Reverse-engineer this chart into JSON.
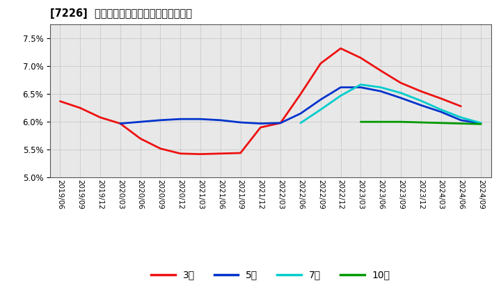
{
  "title": "[7226]  当期純利益マージンの平均値の推移",
  "background_color": "#ffffff",
  "plot_bg_color": "#e8e8e8",
  "ylim": [
    5.0,
    7.75
  ],
  "yticks": [
    5.0,
    5.5,
    6.0,
    6.5,
    7.0,
    7.5
  ],
  "series": {
    "3年": {
      "color": "#ee1111",
      "data": [
        [
          "2019/06",
          6.37
        ],
        [
          "2019/09",
          6.25
        ],
        [
          "2019/12",
          6.08
        ],
        [
          "2020/03",
          5.97
        ],
        [
          "2020/06",
          5.7
        ],
        [
          "2020/09",
          5.52
        ],
        [
          "2020/12",
          5.43
        ],
        [
          "2021/03",
          5.42
        ],
        [
          "2021/06",
          5.43
        ],
        [
          "2021/09",
          5.44
        ],
        [
          "2021/12",
          5.9
        ],
        [
          "2022/03",
          5.98
        ],
        [
          "2022/06",
          6.5
        ],
        [
          "2022/09",
          7.05
        ],
        [
          "2022/12",
          7.32
        ],
        [
          "2023/03",
          7.15
        ],
        [
          "2023/06",
          6.92
        ],
        [
          "2023/09",
          6.7
        ],
        [
          "2023/12",
          6.55
        ],
        [
          "2024/03",
          6.42
        ],
        [
          "2024/06",
          6.28
        ]
      ]
    },
    "5年": {
      "color": "#0033cc",
      "data": [
        [
          "2020/03",
          5.97
        ],
        [
          "2020/06",
          6.0
        ],
        [
          "2020/09",
          6.03
        ],
        [
          "2020/12",
          6.05
        ],
        [
          "2021/03",
          6.05
        ],
        [
          "2021/06",
          6.03
        ],
        [
          "2021/09",
          5.99
        ],
        [
          "2021/12",
          5.97
        ],
        [
          "2022/03",
          5.98
        ],
        [
          "2022/06",
          6.15
        ],
        [
          "2022/09",
          6.4
        ],
        [
          "2022/12",
          6.62
        ],
        [
          "2023/03",
          6.62
        ],
        [
          "2023/06",
          6.55
        ],
        [
          "2023/09",
          6.43
        ],
        [
          "2023/12",
          6.3
        ],
        [
          "2024/03",
          6.18
        ],
        [
          "2024/06",
          6.03
        ],
        [
          "2024/09",
          5.97
        ]
      ]
    },
    "7年": {
      "color": "#00cccc",
      "data": [
        [
          "2022/06",
          5.98
        ],
        [
          "2022/09",
          6.22
        ],
        [
          "2022/12",
          6.47
        ],
        [
          "2023/03",
          6.67
        ],
        [
          "2023/06",
          6.62
        ],
        [
          "2023/09",
          6.52
        ],
        [
          "2023/12",
          6.38
        ],
        [
          "2024/03",
          6.22
        ],
        [
          "2024/06",
          6.08
        ],
        [
          "2024/09",
          5.98
        ]
      ]
    },
    "10年": {
      "color": "#009900",
      "data": [
        [
          "2023/03",
          6.0
        ],
        [
          "2023/06",
          6.0
        ],
        [
          "2023/09",
          6.0
        ],
        [
          "2023/12",
          5.99
        ],
        [
          "2024/03",
          5.98
        ],
        [
          "2024/06",
          5.97
        ],
        [
          "2024/09",
          5.96
        ]
      ]
    }
  },
  "xtick_labels": [
    "2019/06",
    "2019/09",
    "2019/12",
    "2020/03",
    "2020/06",
    "2020/09",
    "2020/12",
    "2021/03",
    "2021/06",
    "2021/09",
    "2021/12",
    "2022/03",
    "2022/06",
    "2022/09",
    "2022/12",
    "2023/03",
    "2023/06",
    "2023/09",
    "2023/12",
    "2024/03",
    "2024/06",
    "2024/09"
  ]
}
